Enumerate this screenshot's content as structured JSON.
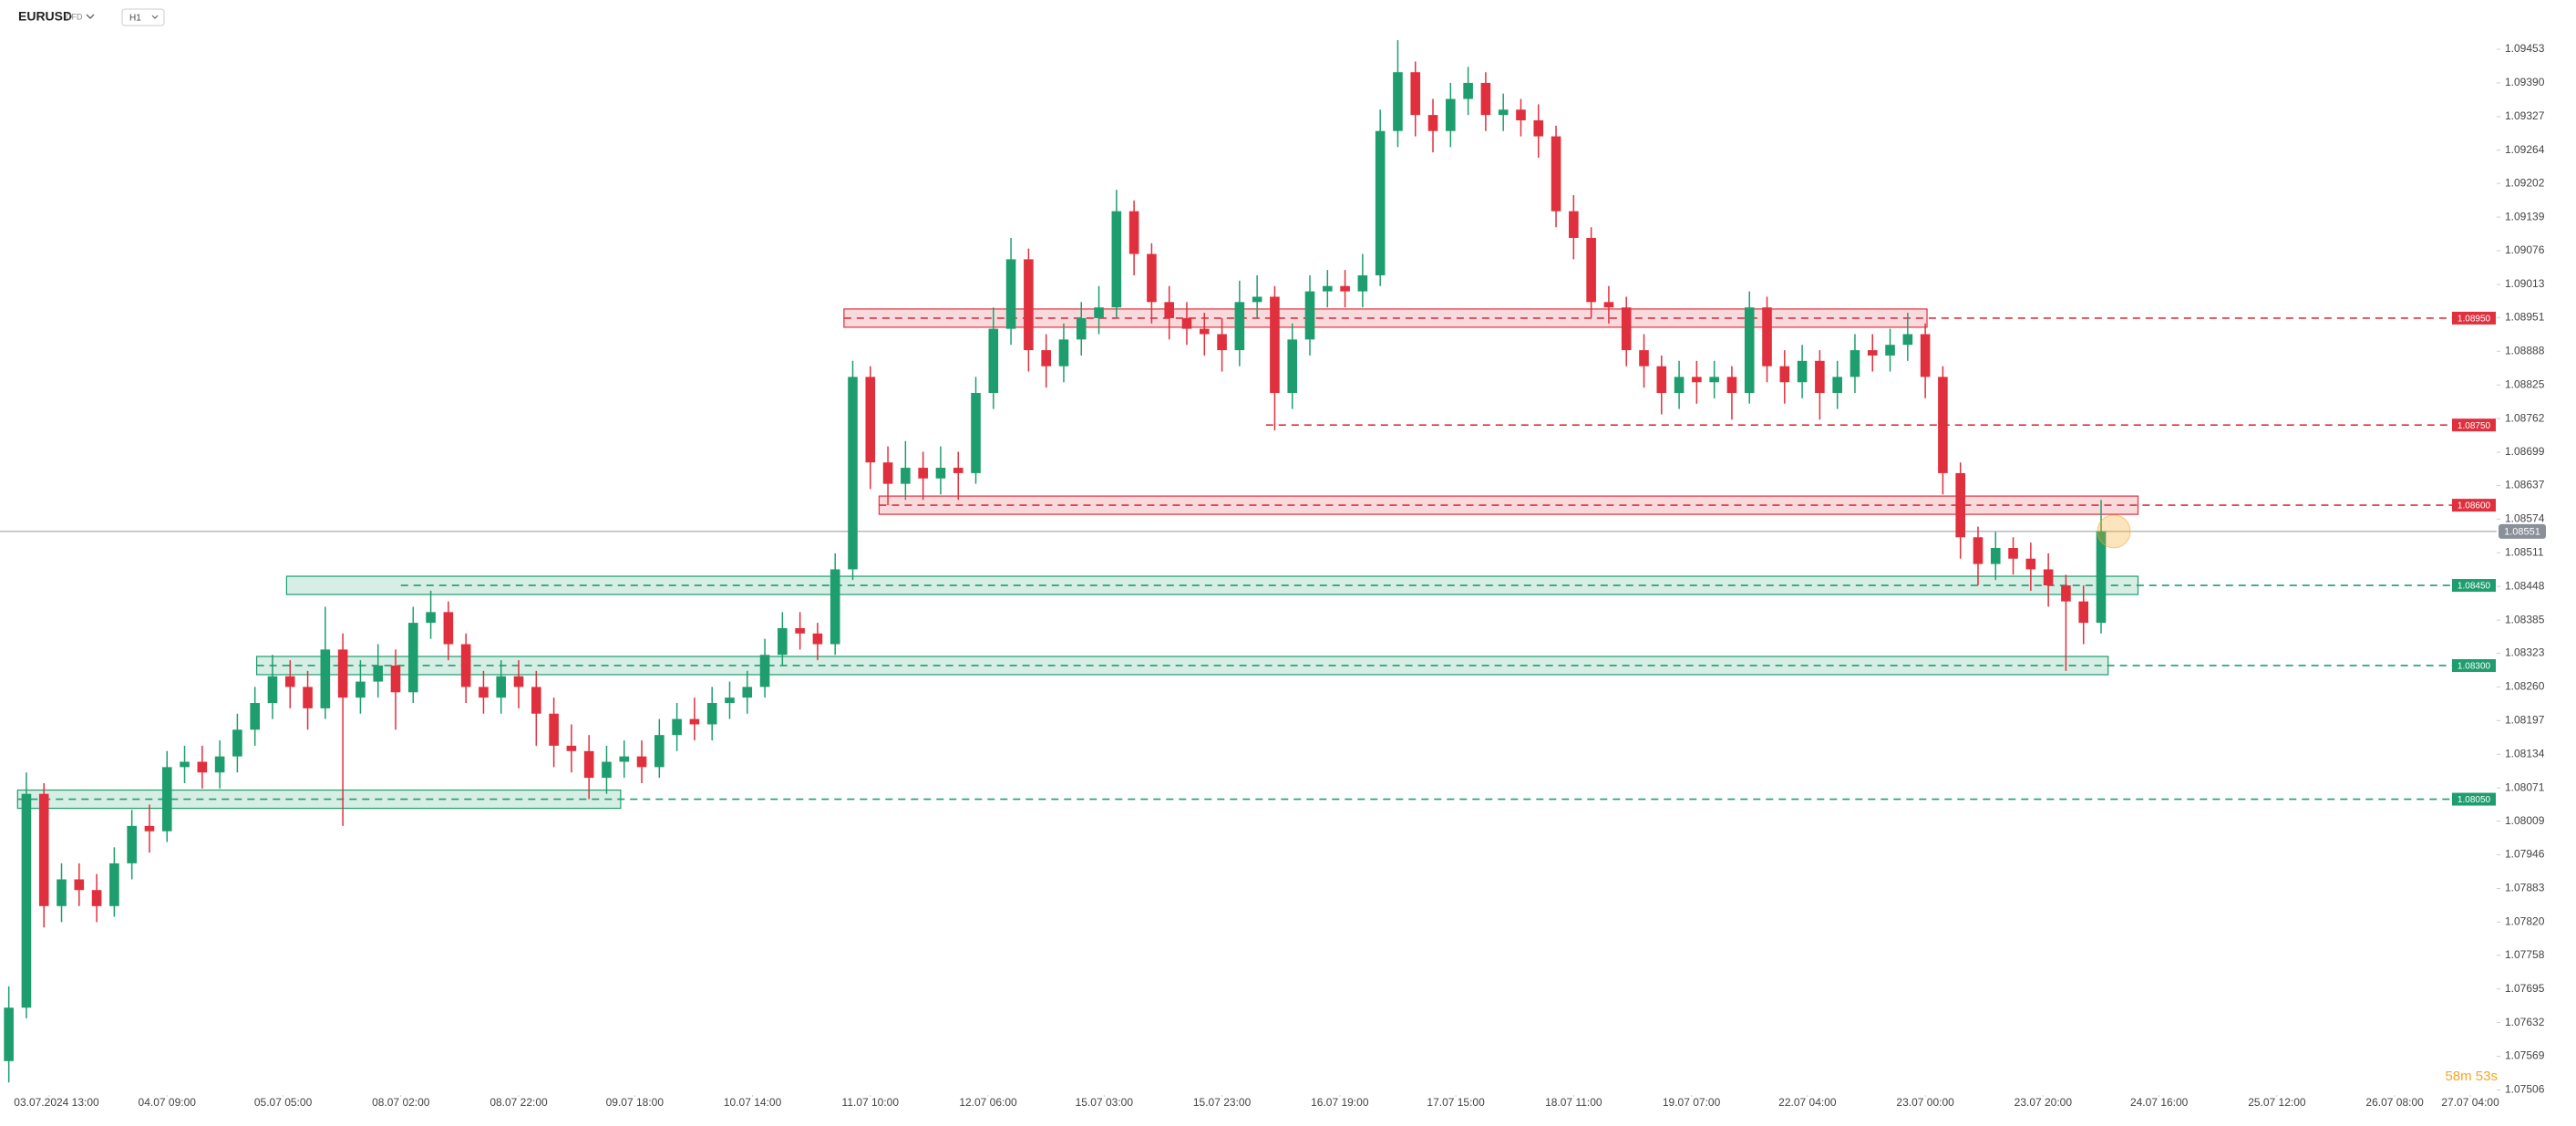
{
  "chart_data": {
    "type": "candlestick",
    "symbol": "EURUSD",
    "instrument": "CFD",
    "timeframe": "H1",
    "countdown": "58m 53s",
    "up_color": "#1e9e6e",
    "down_color": "#e0303e",
    "grid": false,
    "open": [
      1.0756,
      1.0766,
      1.0806,
      1.0785,
      1.079,
      1.0788,
      1.0785,
      1.0793,
      1.08,
      1.0799,
      1.0811,
      1.0812,
      1.081,
      1.0813,
      1.0818,
      1.0823,
      1.0828,
      1.0826,
      1.0822,
      1.0833,
      1.0824,
      1.0827,
      1.083,
      1.0825,
      1.0838,
      1.084,
      1.0834,
      1.0826,
      1.0824,
      1.0828,
      1.0826,
      1.0821,
      1.0815,
      1.0814,
      1.0809,
      1.0812,
      1.0813,
      1.0811,
      1.0817,
      1.082,
      1.0819,
      1.0823,
      1.0824,
      1.0826,
      1.0832,
      1.0837,
      1.0836,
      1.0834,
      1.0848,
      1.0884,
      1.0868,
      1.0864,
      1.0867,
      1.0865,
      1.0867,
      1.0866,
      1.0881,
      1.0893,
      1.0906,
      1.0889,
      1.0886,
      1.0891,
      1.0895,
      1.0897,
      1.0915,
      1.0907,
      1.0898,
      1.0895,
      1.0893,
      1.0892,
      1.0889,
      1.0898,
      1.0899,
      1.0881,
      1.0891,
      1.09,
      1.0901,
      1.09,
      1.0903,
      1.093,
      1.0941,
      1.0933,
      1.093,
      1.0936,
      1.0939,
      1.0933,
      1.0934,
      1.0932,
      1.0929,
      1.0915,
      1.091,
      1.0898,
      1.0897,
      1.0889,
      1.0886,
      1.0881,
      1.0884,
      1.0883,
      1.0884,
      1.0881,
      1.0897,
      1.0886,
      1.0883,
      1.0887,
      1.0881,
      1.0884,
      1.0889,
      1.0888,
      1.089,
      1.0892,
      1.0884,
      1.0866,
      1.0854,
      1.0849,
      1.0852,
      1.085,
      1.0848,
      1.0845,
      1.0842,
      1.0838
    ],
    "high": [
      1.077,
      1.081,
      1.0808,
      1.0793,
      1.0793,
      1.0791,
      1.0796,
      1.0803,
      1.0804,
      1.0814,
      1.0815,
      1.0815,
      1.0816,
      1.0821,
      1.0826,
      1.0832,
      1.0831,
      1.0829,
      1.0841,
      1.0836,
      1.0831,
      1.0834,
      1.0833,
      1.0841,
      1.0844,
      1.0842,
      1.0836,
      1.0829,
      1.0831,
      1.0831,
      1.0829,
      1.0824,
      1.0819,
      1.0817,
      1.0815,
      1.0816,
      1.0816,
      1.082,
      1.0823,
      1.0824,
      1.0826,
      1.0827,
      1.0829,
      1.0835,
      1.084,
      1.084,
      1.0838,
      1.0851,
      1.0887,
      1.0886,
      1.0871,
      1.0872,
      1.087,
      1.0871,
      1.087,
      1.0884,
      1.0897,
      1.091,
      1.0908,
      1.0892,
      1.0894,
      1.0898,
      1.0901,
      1.0919,
      1.0917,
      1.0909,
      1.0901,
      1.0898,
      1.0896,
      1.0895,
      1.0902,
      1.0903,
      1.0901,
      1.0894,
      1.0903,
      1.0904,
      1.0904,
      1.0907,
      1.0934,
      1.0947,
      1.0943,
      1.0936,
      1.0939,
      1.0942,
      1.0941,
      1.0937,
      1.0936,
      1.0935,
      1.0931,
      1.0918,
      1.0912,
      1.0901,
      1.0899,
      1.0892,
      1.0888,
      1.0887,
      1.0887,
      1.0887,
      1.0886,
      1.09,
      1.0899,
      1.0889,
      1.089,
      1.0889,
      1.0887,
      1.0892,
      1.0892,
      1.0893,
      1.0896,
      1.0894,
      1.0886,
      1.0868,
      1.0856,
      1.0855,
      1.0854,
      1.0853,
      1.0851,
      1.0847,
      1.0845,
      1.0861
    ],
    "low": [
      1.0752,
      1.0764,
      1.0781,
      1.0782,
      1.0785,
      1.0782,
      1.0783,
      1.079,
      1.0795,
      1.0797,
      1.0808,
      1.0807,
      1.0807,
      1.081,
      1.0815,
      1.082,
      1.0822,
      1.0818,
      1.082,
      1.08,
      1.0821,
      1.0824,
      1.0818,
      1.0823,
      1.0835,
      1.0831,
      1.0823,
      1.0821,
      1.0821,
      1.0822,
      1.0815,
      1.0811,
      1.081,
      1.0805,
      1.0806,
      1.0809,
      1.0808,
      1.0809,
      1.0814,
      1.0816,
      1.0816,
      1.082,
      1.0821,
      1.0824,
      1.083,
      1.0833,
      1.0831,
      1.0832,
      1.0846,
      1.0863,
      1.086,
      1.0861,
      1.0861,
      1.0862,
      1.0861,
      1.0864,
      1.0878,
      1.089,
      1.0885,
      1.0882,
      1.0883,
      1.0888,
      1.0892,
      1.0895,
      1.0903,
      1.0894,
      1.0891,
      1.089,
      1.0888,
      1.0885,
      1.0886,
      1.0895,
      1.0874,
      1.0878,
      1.0888,
      1.0897,
      1.0897,
      1.0897,
      1.0901,
      1.0927,
      1.0929,
      1.0926,
      1.0927,
      1.0933,
      1.093,
      1.093,
      1.0929,
      1.0925,
      1.0912,
      1.0906,
      1.0895,
      1.0894,
      1.0886,
      1.0882,
      1.0877,
      1.0878,
      1.0879,
      1.088,
      1.0876,
      1.0879,
      1.0883,
      1.0879,
      1.088,
      1.0876,
      1.0878,
      1.0881,
      1.0885,
      1.0885,
      1.0887,
      1.088,
      1.0862,
      1.085,
      1.0845,
      1.0846,
      1.0847,
      1.0844,
      1.0841,
      1.0829,
      1.0834,
      1.0836
    ],
    "close": [
      1.0766,
      1.0806,
      1.0785,
      1.079,
      1.0788,
      1.0785,
      1.0793,
      1.08,
      1.0799,
      1.0811,
      1.0812,
      1.081,
      1.0813,
      1.0818,
      1.0823,
      1.0828,
      1.0826,
      1.0822,
      1.0833,
      1.0824,
      1.0827,
      1.083,
      1.0825,
      1.0838,
      1.084,
      1.0834,
      1.0826,
      1.0824,
      1.0828,
      1.0826,
      1.0821,
      1.0815,
      1.0814,
      1.0809,
      1.0812,
      1.0813,
      1.0811,
      1.0817,
      1.082,
      1.0819,
      1.0823,
      1.0824,
      1.0826,
      1.0832,
      1.0837,
      1.0836,
      1.0834,
      1.0848,
      1.0884,
      1.0868,
      1.0864,
      1.0867,
      1.0865,
      1.0867,
      1.0866,
      1.0881,
      1.0893,
      1.0906,
      1.0889,
      1.0886,
      1.0891,
      1.0895,
      1.0897,
      1.0915,
      1.0907,
      1.0898,
      1.0895,
      1.0893,
      1.0892,
      1.0889,
      1.0898,
      1.0899,
      1.0881,
      1.0891,
      1.09,
      1.0901,
      1.09,
      1.0903,
      1.093,
      1.0941,
      1.0933,
      1.093,
      1.0936,
      1.0939,
      1.0933,
      1.0934,
      1.0932,
      1.0929,
      1.0915,
      1.091,
      1.0898,
      1.0897,
      1.0889,
      1.0886,
      1.0881,
      1.0884,
      1.0883,
      1.0884,
      1.0881,
      1.0897,
      1.0886,
      1.0883,
      1.0887,
      1.0881,
      1.0884,
      1.0889,
      1.0888,
      1.089,
      1.0892,
      1.0884,
      1.0866,
      1.0854,
      1.0849,
      1.0852,
      1.085,
      1.0848,
      1.0845,
      1.0842,
      1.0838,
      1.08551
    ],
    "xlim": [
      -0.5,
      141.5
    ],
    "xticks": [
      {
        "value": 2.3,
        "label": "03.07.2024 13:00"
      },
      {
        "value": 9.0,
        "label": "04.07 09:00"
      },
      {
        "value": 15.6,
        "label": "05.07 05:00"
      },
      {
        "value": 22.3,
        "label": "08.07 02:00"
      },
      {
        "value": 29.0,
        "label": "08.07 22:00"
      },
      {
        "value": 35.6,
        "label": "09.07 18:00"
      },
      {
        "value": 42.3,
        "label": "10.07 14:00"
      },
      {
        "value": 49.0,
        "label": "11.07 10:00"
      },
      {
        "value": 55.7,
        "label": "12.07 06:00"
      },
      {
        "value": 62.3,
        "label": "15.07 03:00"
      },
      {
        "value": 69.0,
        "label": "15.07 23:00"
      },
      {
        "value": 75.7,
        "label": "16.07 19:00"
      },
      {
        "value": 82.3,
        "label": "17.07 15:00"
      },
      {
        "value": 89.0,
        "label": "18.07 11:00"
      },
      {
        "value": 95.7,
        "label": "19.07 07:00"
      },
      {
        "value": 102.3,
        "label": "22.07 04:00"
      },
      {
        "value": 109.0,
        "label": "23.07 00:00"
      },
      {
        "value": 115.7,
        "label": "23.07 20:00"
      },
      {
        "value": 122.3,
        "label": "24.07 16:00"
      },
      {
        "value": 129.0,
        "label": "25.07 12:00"
      },
      {
        "value": 135.7,
        "label": "26.07 08:00"
      },
      {
        "value": 140.0,
        "label": "27.07 04:00"
      }
    ],
    "ylim": [
      1.075,
      1.0954
    ],
    "yticks": [
      1.09453,
      {
        "value": 1.0939,
        "label": "1.09390"
      },
      1.09327,
      1.09264,
      1.09202,
      1.09139,
      1.09076,
      1.09013,
      1.08951,
      1.08888,
      1.08825,
      1.08762,
      1.08699,
      1.08637,
      1.08574,
      1.08511,
      1.08448,
      1.08385,
      1.08323,
      {
        "value": 1.0826,
        "label": "1.08260"
      },
      1.08197,
      1.08134,
      1.08071,
      1.08009,
      1.07946,
      1.07883,
      {
        "value": 1.0782,
        "label": "1.07820"
      },
      1.07758,
      1.07695,
      1.07632,
      1.07569,
      1.07506
    ],
    "levels": [
      {
        "value": 1.0895,
        "label": "1.08950",
        "color": "#e0303e"
      },
      {
        "value": 1.0875,
        "label": "1.08750",
        "color": "#e0303e"
      },
      {
        "value": 1.086,
        "label": "1.08600",
        "color": "#e0303e"
      },
      {
        "value": 1.0845,
        "label": "1.08450",
        "color": "#1e9e6e"
      },
      {
        "value": 1.083,
        "label": "1.08300",
        "color": "#1e9e6e"
      },
      {
        "value": 1.0805,
        "label": "1.08050",
        "color": "#1e9e6e"
      }
    ],
    "current_price": 1.08551
  }
}
